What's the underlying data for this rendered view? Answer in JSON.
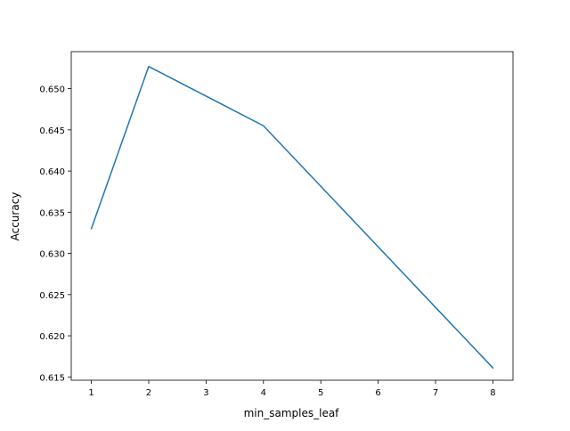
{
  "chart_data": {
    "type": "line",
    "title": "",
    "xlabel": "min_samples_leaf",
    "ylabel": "Accuracy",
    "xlim": [
      0.65,
      8.35
    ],
    "ylim": [
      0.6146,
      0.6545
    ],
    "xticks": [
      1,
      2,
      3,
      4,
      5,
      6,
      7,
      8
    ],
    "xtick_labels": [
      "1",
      "2",
      "3",
      "4",
      "5",
      "6",
      "7",
      "8"
    ],
    "yticks": [
      0.615,
      0.62,
      0.625,
      0.63,
      0.635,
      0.64,
      0.645,
      0.65
    ],
    "ytick_labels": [
      "0.615",
      "0.620",
      "0.625",
      "0.630",
      "0.635",
      "0.640",
      "0.645",
      "0.650"
    ],
    "grid": false,
    "legend": "none",
    "series": [
      {
        "color": "#1f77b4",
        "x": [
          1,
          2,
          4,
          8
        ],
        "y": [
          0.633,
          0.6527,
          0.6455,
          0.6161
        ]
      }
    ]
  }
}
